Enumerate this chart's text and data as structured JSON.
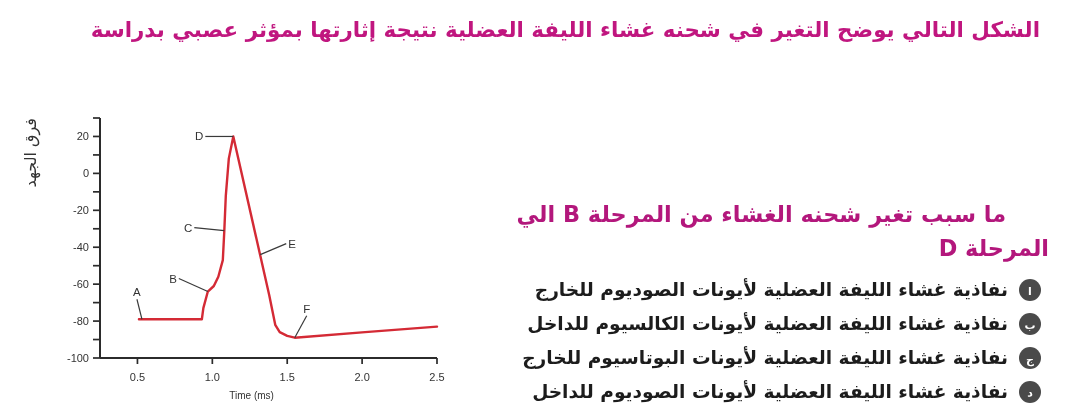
{
  "chart_data": {
    "type": "line",
    "title": "الشكل التالي يوضح التغير في شحنه غشاء الليفة العضلية نتيجة إثارتها بمؤثر عصبي بدراسة",
    "subtitle": "ما سبب تغير شحنه الغشاء من المرحلة B الي المرحلة D",
    "xlabel": "Time (ms)",
    "ylabel": "فرق الجهد",
    "x": [
      0.51,
      0.93,
      0.94,
      0.97,
      1.01,
      1.04,
      1.07,
      1.08,
      1.09,
      1.11,
      1.14,
      1.38,
      1.4,
      1.42,
      1.45,
      1.5,
      1.55,
      2.02,
      2.5
    ],
    "values": [
      -79,
      -79,
      -73,
      -64,
      -61,
      -56,
      -47,
      -31,
      -12,
      8,
      20,
      -66,
      -74,
      -82,
      -86,
      -88,
      -89,
      -86,
      -83
    ],
    "color": "#d42a35",
    "xlim": [
      0.25,
      2.5
    ],
    "ylim": [
      -100,
      30
    ],
    "xticks": [
      0.5,
      {
        "value": 1,
        "label": "1.0"
      },
      1.5,
      {
        "value": 2,
        "label": "2.0"
      },
      2.5
    ],
    "yticks": [
      {
        "value": 30,
        "label": null
      },
      20,
      {
        "value": 10,
        "label": null
      },
      0,
      {
        "value": -10,
        "label": null
      },
      -20,
      {
        "value": -30,
        "label": null
      },
      -40,
      {
        "value": -50,
        "label": null
      },
      -60,
      {
        "value": -70,
        "label": null
      },
      -80,
      {
        "value": -90,
        "label": null
      },
      -100
    ],
    "annotations": [
      {
        "text": "A",
        "x": 0.53,
        "y": -79
      },
      {
        "text": "B",
        "x": 0.97,
        "y": -64
      },
      {
        "text": "C",
        "x": 1.08,
        "y": -31
      },
      {
        "text": "D",
        "x": 1.14,
        "y": 20
      },
      {
        "text": "E",
        "x": 1.32,
        "y": -44
      },
      {
        "text": "F",
        "x": 1.55,
        "y": -89
      },
      "ا",
      "نفاذية غشاء الليفة العضلية لأيونات الصوديوم للخارج",
      "ب",
      "نفاذية غشاء الليفة العضلية لأيونات الكالسيوم للداخل",
      "ج",
      "نفاذية غشاء الليفة العضلية لأيونات البوتاسيوم للخارج",
      "د",
      "نفاذية غشاء الليفة العضلية لأيونات الصوديوم للداخل"
    ]
  }
}
